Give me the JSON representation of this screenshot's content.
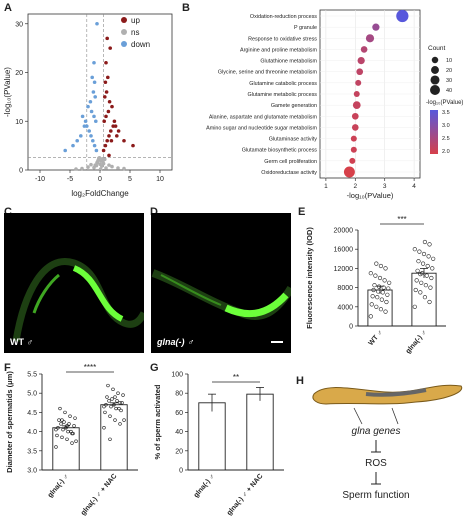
{
  "panels": {
    "A": {
      "letter": "A",
      "xlabel": "log₂FoldChange",
      "ylabel": "-log₁₀(PValue)",
      "xticks": [
        "-10",
        "-5",
        "0",
        "5",
        "10"
      ],
      "yticks": [
        "0",
        "10",
        "20",
        "30"
      ],
      "legend": [
        {
          "label": "up",
          "color": "#8b1a1a"
        },
        {
          "label": "ns",
          "color": "#b0b0b0"
        },
        {
          "label": "down",
          "color": "#6a9fd8"
        }
      ]
    },
    "B": {
      "letter": "B",
      "xlabel": "-log₁₀(PValue)",
      "xticks": [
        "1",
        "2",
        "3",
        "4"
      ],
      "count_title": "Count",
      "count_levels": [
        "10",
        "20",
        "30",
        "40"
      ],
      "color_title": "-log₁₀(PValue)",
      "color_ticks": [
        "3.5",
        "3.0",
        "2.5",
        "2.0"
      ],
      "terms": [
        "Oxidation-reduction process",
        "P granule",
        "Response to oxidative stress",
        "Arginine and proline metabolism",
        "Glutathione metabolism",
        "Glycine, serine and threonine metabolism",
        "Glutamine catabolic process",
        "Glutamine metabolic process",
        "Gamete generation",
        "Alanine, aspartate and glutamate metabolism",
        "Amino sugar and nucleotide sugar metabolism",
        "Glutaminase activity",
        "Glutamate biosynthetic process",
        "Germ cell proliferation",
        "Oxidoreductase activity"
      ]
    },
    "C": {
      "letter": "C",
      "label": "WT ♂"
    },
    "D": {
      "letter": "D",
      "label": "glna(-) ♂"
    },
    "E": {
      "letter": "E",
      "ylabel": "Fluorescence intensity (IOD)",
      "yticks": [
        "0",
        "4000",
        "8000",
        "12000",
        "16000",
        "20000"
      ],
      "categories": [
        "WT ♂",
        "glna(-) ♂"
      ],
      "sig": "***"
    },
    "F": {
      "letter": "F",
      "ylabel": "Diameter of spermatids (μm)",
      "yticks": [
        "3.0",
        "3.5",
        "4.0",
        "4.5",
        "5.0",
        "5.5"
      ],
      "categories": [
        "glna(-) ♂",
        "glna(-) ♂ + NAC"
      ],
      "sig": "****"
    },
    "G": {
      "letter": "G",
      "ylabel": "% of sperm activated",
      "yticks": [
        "0",
        "20",
        "40",
        "60",
        "80",
        "100"
      ],
      "categories": [
        "glna(-) ♂",
        "glna(-) ♂ + NAC"
      ],
      "sig": "**"
    },
    "H": {
      "letter": "H",
      "genes": "glna genes",
      "ros": "ROS",
      "function": "Sperm function"
    }
  },
  "chart_data": [
    {
      "type": "scatter",
      "panel": "A",
      "xlabel": "log₂FoldChange",
      "ylabel": "-log₁₀(PValue)",
      "xlim": [
        -12,
        12
      ],
      "ylim": [
        0,
        32
      ],
      "series": [
        {
          "name": "up",
          "color": "#8b1a1a",
          "x": [
            0.6,
            0.9,
            1.2,
            1.5,
            1.8,
            2.2,
            0.7,
            1.0,
            1.4,
            2.0,
            2.6,
            3.1,
            0.8,
            1.1,
            1.6,
            2.4,
            0.9,
            1.3,
            1.9,
            1.0,
            1.7,
            2.8,
            4.0,
            5.5,
            1.2,
            1.5
          ],
          "y": [
            4,
            5,
            6,
            7,
            8,
            9,
            10,
            11,
            12,
            13,
            9,
            8,
            15,
            16,
            14,
            10,
            18,
            19,
            6,
            22,
            25,
            7,
            6,
            5,
            27,
            3
          ]
        },
        {
          "name": "down",
          "color": "#6a9fd8",
          "x": [
            -0.6,
            -0.9,
            -1.2,
            -1.5,
            -1.8,
            -2.2,
            -0.7,
            -1.0,
            -1.4,
            -2.0,
            -2.6,
            -3.2,
            -0.8,
            -1.1,
            -1.6,
            -2.4,
            -0.9,
            -1.3,
            -3.8,
            -4.5,
            -5.8,
            -1.0,
            -2.9,
            -0.5
          ],
          "y": [
            4,
            5,
            6,
            7,
            8,
            9,
            10,
            11,
            12,
            13,
            9,
            7,
            15,
            16,
            14,
            10,
            18,
            19,
            6,
            5,
            4,
            22,
            11,
            30
          ]
        },
        {
          "name": "ns",
          "color": "#b0b0b0",
          "x": [
            -1.0,
            -0.8,
            -0.5,
            -0.3,
            0.0,
            0.3,
            0.5,
            0.8,
            1.0,
            -0.6,
            0.6,
            -0.2,
            0.2,
            -2.0,
            2.0,
            -3.0,
            3.0,
            -1.5,
            1.5,
            0.1,
            -0.1,
            4.0,
            -4.0,
            0.4,
            -0.4
          ],
          "y": [
            0.5,
            1.0,
            1.5,
            2.0,
            1.2,
            0.8,
            1.6,
            2.2,
            0.4,
            0.9,
            1.3,
            2.4,
            1.9,
            0.6,
            0.7,
            0.3,
            0.4,
            1.1,
            1.0,
            0.2,
            2.5,
            0.3,
            0.2,
            2.3,
            1.7
          ]
        }
      ]
    },
    {
      "type": "scatter",
      "panel": "B",
      "xlabel": "-log₁₀(PValue)",
      "xlim": [
        0.8,
        4.2
      ],
      "terms": [
        "Oxidation-reduction process",
        "P granule",
        "Response to oxidative stress",
        "Arginine and proline metabolism",
        "Glutathione metabolism",
        "Glycine, serine and threonine metabolism",
        "Glutamine catabolic process",
        "Glutamine metabolic process",
        "Gamete generation",
        "Alanine, aspartate and glutamate metabolism",
        "Amino sugar and nucleotide sugar metabolism",
        "Glutaminase activity",
        "Glutamate biosynthetic process",
        "Germ cell proliferation",
        "Oxidoreductase activity"
      ],
      "x": [
        3.6,
        2.7,
        2.5,
        2.3,
        2.2,
        2.15,
        2.1,
        2.05,
        2.05,
        2.0,
        2.0,
        1.95,
        1.95,
        1.9,
        1.8
      ],
      "count": [
        38,
        8,
        12,
        6,
        8,
        6,
        4,
        4,
        10,
        6,
        6,
        4,
        4,
        4,
        28
      ]
    },
    {
      "type": "bar",
      "panel": "E",
      "categories": [
        "WT ♂",
        "glna(-) ♂"
      ],
      "values": [
        7500,
        11000
      ],
      "errors": [
        800,
        1000
      ],
      "ylim": [
        0,
        20000
      ],
      "points": [
        [
          2000,
          3000,
          3500,
          4000,
          4500,
          5000,
          5500,
          6000,
          6200,
          6500,
          7000,
          7200,
          7500,
          7800,
          8000,
          8200,
          8500,
          9000,
          9500,
          10000,
          10500,
          11000,
          12000,
          12500,
          13000
        ],
        [
          4000,
          5000,
          6000,
          7000,
          7500,
          8000,
          8500,
          9000,
          9500,
          10000,
          10500,
          11000,
          11500,
          12000,
          12500,
          13000,
          13500,
          14000,
          14500,
          15000,
          15500,
          16000,
          17000,
          17500,
          10800
        ]
      ]
    },
    {
      "type": "bar",
      "panel": "F",
      "categories": [
        "glna(-) ♂",
        "glna(-) ♂ + NAC"
      ],
      "values": [
        4.1,
        4.7
      ],
      "errors": [
        0.05,
        0.05
      ],
      "ylim": [
        3.0,
        5.5
      ],
      "points": [
        [
          3.6,
          3.7,
          3.8,
          3.85,
          3.9,
          3.95,
          4.0,
          4.05,
          4.1,
          4.15,
          4.2,
          4.25,
          4.3,
          4.35,
          4.4,
          4.5,
          4.6,
          3.75,
          4.0,
          4.1,
          4.2,
          4.05,
          3.95,
          4.15,
          4.3
        ],
        [
          4.1,
          4.2,
          4.3,
          4.4,
          4.5,
          4.55,
          4.6,
          4.65,
          4.7,
          4.75,
          4.8,
          4.85,
          4.9,
          4.95,
          5.0,
          5.1,
          5.2,
          4.3,
          4.6,
          4.7,
          4.8,
          4.65,
          4.75,
          4.9,
          3.8
        ]
      ]
    },
    {
      "type": "bar",
      "panel": "G",
      "categories": [
        "glna(-) ♂",
        "glna(-) ♂ + NAC"
      ],
      "values": [
        70,
        79
      ],
      "errors": [
        9,
        7
      ],
      "ylim": [
        0,
        100
      ]
    }
  ]
}
